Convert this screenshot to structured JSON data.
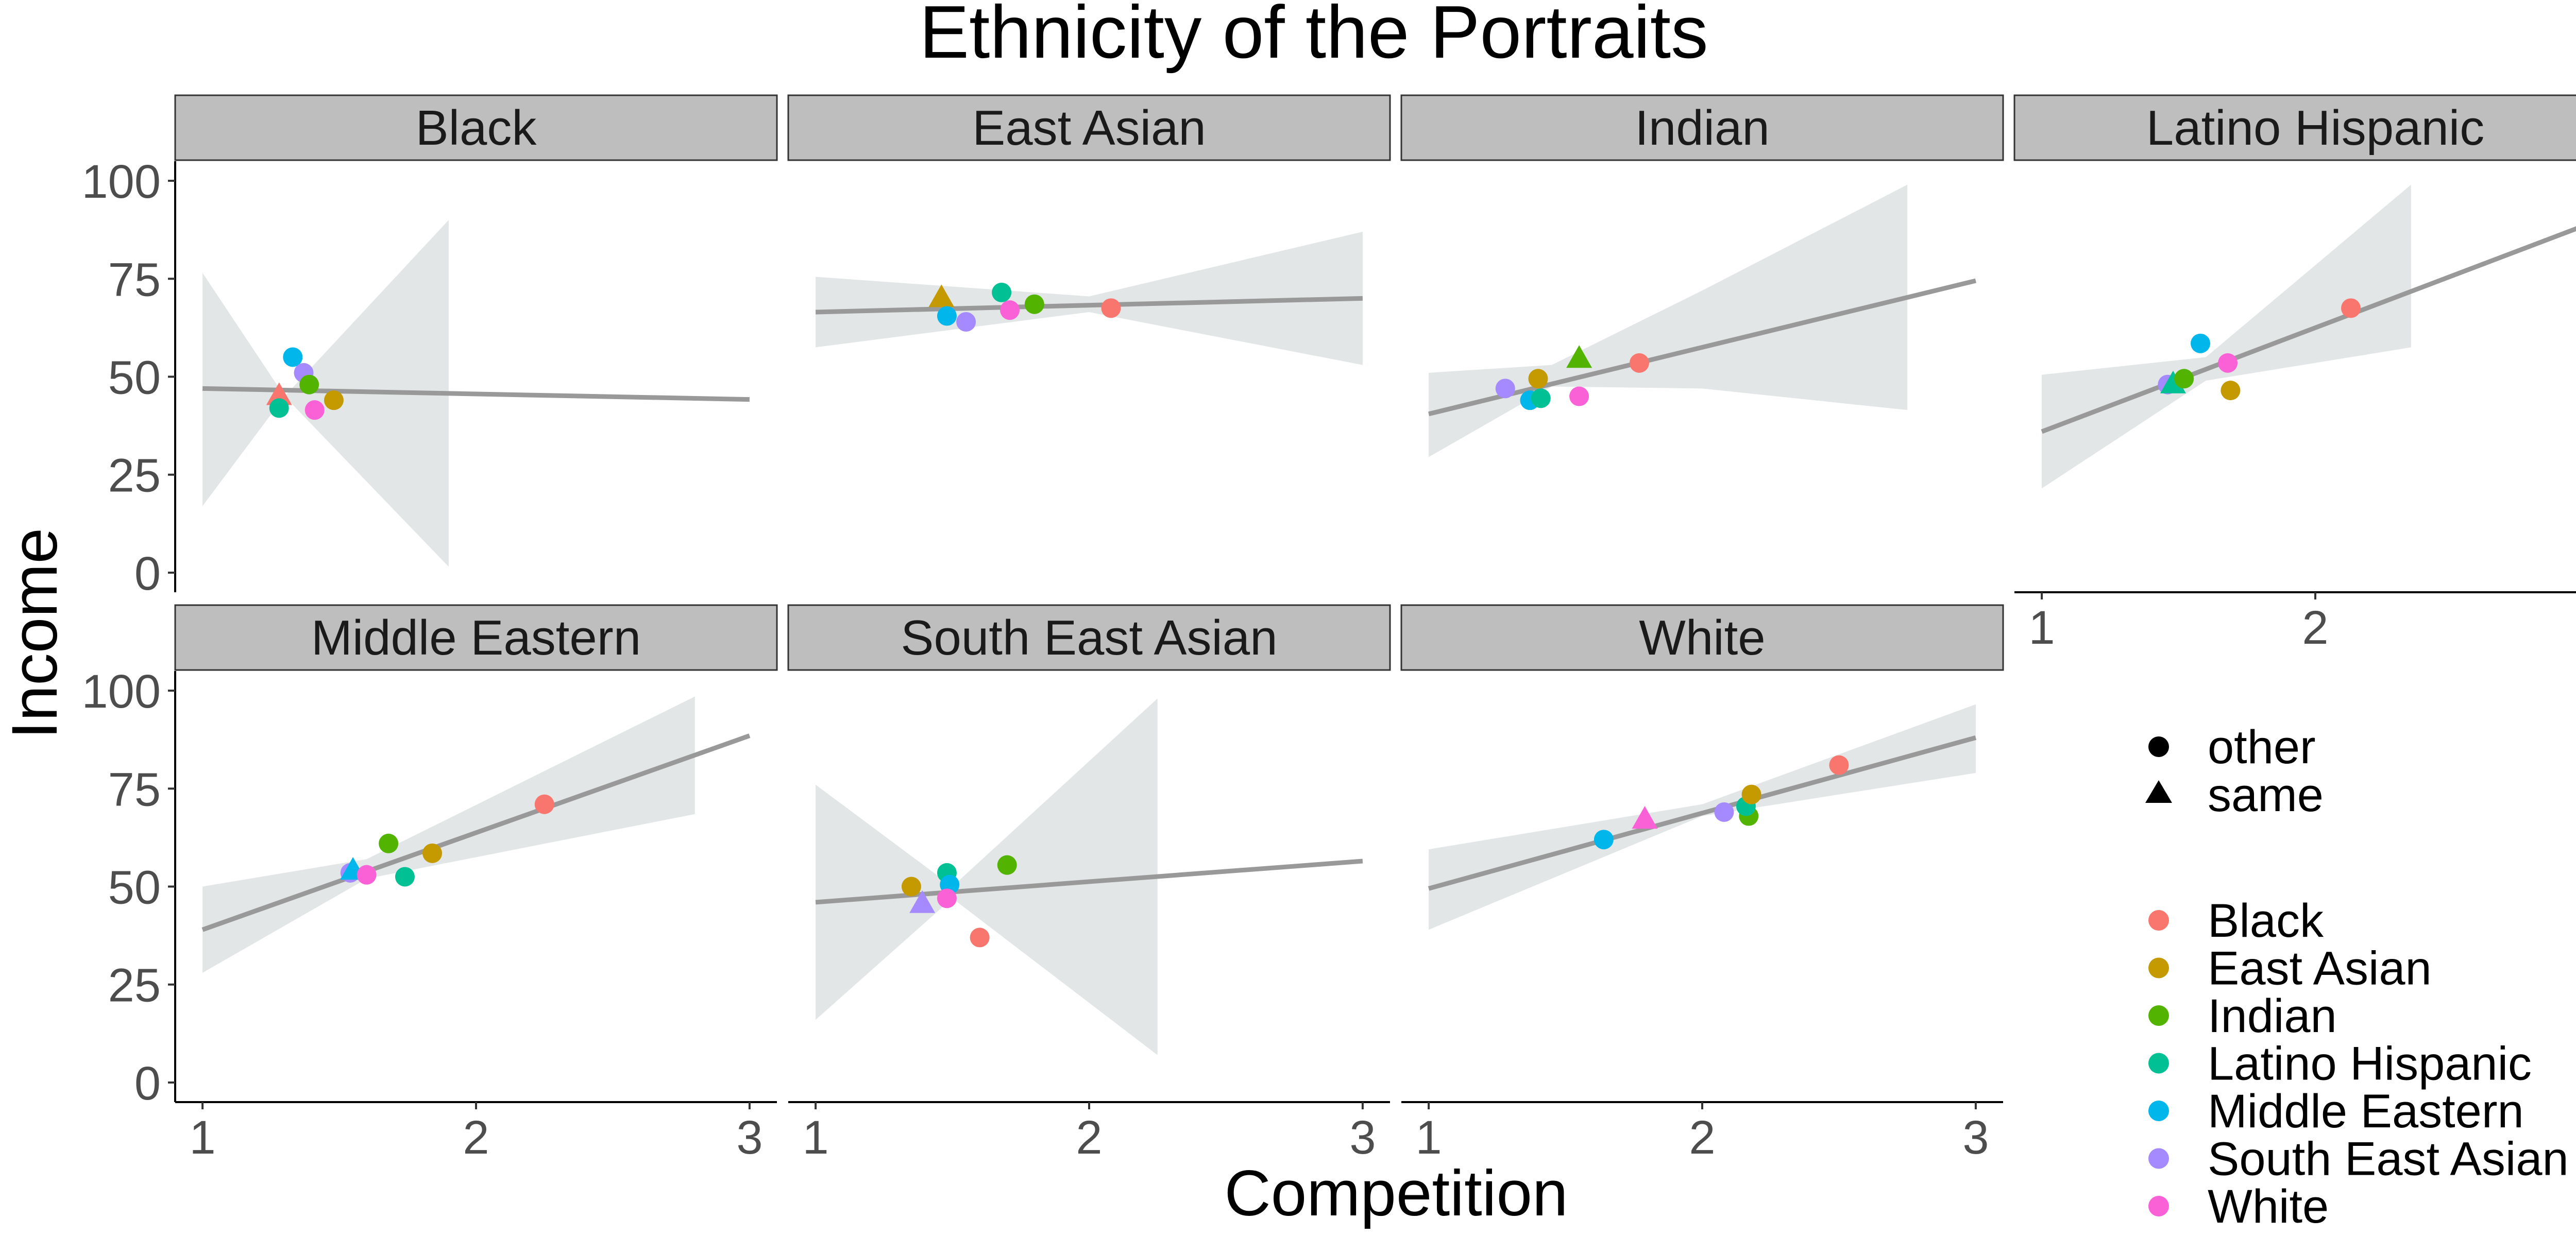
{
  "chart_data": {
    "type": "scatter",
    "title": "Ethnicity of the Portraits",
    "xlabel": "Competition",
    "ylabel": "Income",
    "xlim": [
      0.9,
      3.1
    ],
    "ylim": [
      -5,
      105
    ],
    "x_ticks": [
      "1",
      "2",
      "3"
    ],
    "y_ticks": [
      "0",
      "25",
      "50",
      "75",
      "100"
    ],
    "grid": false,
    "shape_legend": [
      {
        "label": "other",
        "shape": "circle"
      },
      {
        "label": "same",
        "shape": "triangle"
      }
    ],
    "color_legend": [
      {
        "label": "Black",
        "color": "#F8766D"
      },
      {
        "label": "East Asian",
        "color": "#C49A00"
      },
      {
        "label": "Indian",
        "color": "#53B400"
      },
      {
        "label": "Latino Hispanic",
        "color": "#00C094"
      },
      {
        "label": "Middle Eastern",
        "color": "#00B6EB"
      },
      {
        "label": "South East Asian",
        "color": "#A58AFF"
      },
      {
        "label": "White",
        "color": "#FB61D7"
      }
    ],
    "trend_color": "#999999",
    "band_color": "#D5DCDC",
    "facets": [
      {
        "name": "Black",
        "trend": {
          "x": [
            1,
            3
          ],
          "y": [
            47,
            44.2
          ]
        },
        "band": {
          "x": [
            1,
            1.3,
            1.9
          ],
          "upper": [
            76.5,
            45,
            90
          ],
          "lower": [
            17,
            45,
            1.5
          ]
        },
        "points": [
          {
            "group": "Black",
            "shape": "same",
            "x": 1.28,
            "y": 45
          },
          {
            "group": "Latino Hispanic",
            "shape": "other",
            "x": 1.28,
            "y": 42
          },
          {
            "group": "Middle Eastern",
            "shape": "other",
            "x": 1.33,
            "y": 55
          },
          {
            "group": "South East Asian",
            "shape": "other",
            "x": 1.37,
            "y": 51
          },
          {
            "group": "Indian",
            "shape": "other",
            "x": 1.39,
            "y": 48
          },
          {
            "group": "White",
            "shape": "other",
            "x": 1.41,
            "y": 41.5
          },
          {
            "group": "East Asian",
            "shape": "other",
            "x": 1.48,
            "y": 44
          }
        ]
      },
      {
        "name": "East Asian",
        "trend": {
          "x": [
            1,
            3
          ],
          "y": [
            66.5,
            70
          ]
        },
        "band": {
          "x": [
            1,
            2,
            3
          ],
          "upper": [
            75.5,
            70.5,
            87
          ],
          "lower": [
            57.5,
            66.5,
            53
          ]
        },
        "points": [
          {
            "group": "East Asian",
            "shape": "same",
            "x": 1.46,
            "y": 70
          },
          {
            "group": "Middle Eastern",
            "shape": "other",
            "x": 1.48,
            "y": 65.5
          },
          {
            "group": "South East Asian",
            "shape": "other",
            "x": 1.55,
            "y": 64
          },
          {
            "group": "Latino Hispanic",
            "shape": "other",
            "x": 1.68,
            "y": 71.5
          },
          {
            "group": "White",
            "shape": "other",
            "x": 1.71,
            "y": 67
          },
          {
            "group": "Indian",
            "shape": "other",
            "x": 1.8,
            "y": 68.5
          },
          {
            "group": "Black",
            "shape": "other",
            "x": 2.08,
            "y": 67.5
          }
        ]
      },
      {
        "name": "Indian",
        "trend": {
          "x": [
            1,
            3
          ],
          "y": [
            40.5,
            74.5
          ]
        },
        "band": {
          "x": [
            1,
            1.45,
            2,
            2.75
          ],
          "upper": [
            51,
            53,
            72,
            99
          ],
          "lower": [
            29.5,
            47.5,
            47,
            41.5
          ]
        },
        "points": [
          {
            "group": "South East Asian",
            "shape": "other",
            "x": 1.28,
            "y": 47
          },
          {
            "group": "Middle Eastern",
            "shape": "other",
            "x": 1.37,
            "y": 44
          },
          {
            "group": "East Asian",
            "shape": "other",
            "x": 1.4,
            "y": 49.5
          },
          {
            "group": "Latino Hispanic",
            "shape": "other",
            "x": 1.41,
            "y": 44.5
          },
          {
            "group": "Indian",
            "shape": "same",
            "x": 1.55,
            "y": 54.5
          },
          {
            "group": "White",
            "shape": "other",
            "x": 1.55,
            "y": 45
          },
          {
            "group": "Black",
            "shape": "other",
            "x": 1.77,
            "y": 53.5
          }
        ]
      },
      {
        "name": "Latino Hispanic",
        "trend": {
          "x": [
            1,
            3
          ],
          "y": [
            36,
            89
          ]
        },
        "band": {
          "x": [
            1,
            1.6,
            2.35
          ],
          "upper": [
            50.5,
            55,
            99
          ],
          "lower": [
            21.5,
            49,
            57.5
          ]
        },
        "points": [
          {
            "group": "South East Asian",
            "shape": "other",
            "x": 1.46,
            "y": 48
          },
          {
            "group": "Latino Hispanic",
            "shape": "same",
            "x": 1.48,
            "y": 48
          },
          {
            "group": "Indian",
            "shape": "other",
            "x": 1.52,
            "y": 49.5
          },
          {
            "group": "Middle Eastern",
            "shape": "other",
            "x": 1.58,
            "y": 58.5
          },
          {
            "group": "White",
            "shape": "other",
            "x": 1.68,
            "y": 53.5
          },
          {
            "group": "East Asian",
            "shape": "other",
            "x": 1.69,
            "y": 46.5
          },
          {
            "group": "Black",
            "shape": "other",
            "x": 2.13,
            "y": 67.5
          }
        ]
      },
      {
        "name": "Middle Eastern",
        "trend": {
          "x": [
            1,
            3
          ],
          "y": [
            39,
            88.5
          ]
        },
        "band": {
          "x": [
            1,
            1.6,
            2.8
          ],
          "upper": [
            50,
            57,
            98.5
          ],
          "lower": [
            28,
            52,
            68.5
          ]
        },
        "points": [
          {
            "group": "South East Asian",
            "shape": "other",
            "x": 1.54,
            "y": 53.5
          },
          {
            "group": "Middle Eastern",
            "shape": "same",
            "x": 1.55,
            "y": 54
          },
          {
            "group": "White",
            "shape": "other",
            "x": 1.6,
            "y": 53
          },
          {
            "group": "Indian",
            "shape": "other",
            "x": 1.68,
            "y": 61
          },
          {
            "group": "Latino Hispanic",
            "shape": "other",
            "x": 1.74,
            "y": 52.5
          },
          {
            "group": "East Asian",
            "shape": "other",
            "x": 1.84,
            "y": 58.5
          },
          {
            "group": "Black",
            "shape": "other",
            "x": 2.25,
            "y": 71
          }
        ]
      },
      {
        "name": "South East Asian",
        "trend": {
          "x": [
            1,
            3
          ],
          "y": [
            46,
            56.5
          ]
        },
        "band": {
          "x": [
            1,
            1.5,
            2.25
          ],
          "upper": [
            76,
            50,
            98
          ],
          "lower": [
            16,
            47,
            7
          ]
        },
        "points": [
          {
            "group": "East Asian",
            "shape": "other",
            "x": 1.35,
            "y": 50
          },
          {
            "group": "South East Asian",
            "shape": "same",
            "x": 1.39,
            "y": 45.5
          },
          {
            "group": "Latino Hispanic",
            "shape": "other",
            "x": 1.48,
            "y": 53.5
          },
          {
            "group": "Middle Eastern",
            "shape": "other",
            "x": 1.49,
            "y": 50.5
          },
          {
            "group": "White",
            "shape": "other",
            "x": 1.48,
            "y": 47
          },
          {
            "group": "Indian",
            "shape": "other",
            "x": 1.7,
            "y": 55.5
          },
          {
            "group": "Black",
            "shape": "other",
            "x": 1.6,
            "y": 37
          }
        ]
      },
      {
        "name": "White",
        "trend": {
          "x": [
            1,
            3
          ],
          "y": [
            49.5,
            88
          ]
        },
        "band": {
          "x": [
            1,
            2,
            3
          ],
          "upper": [
            59.5,
            71,
            96.5
          ],
          "lower": [
            39,
            68,
            79
          ]
        },
        "points": [
          {
            "group": "Middle Eastern",
            "shape": "other",
            "x": 1.64,
            "y": 62
          },
          {
            "group": "White",
            "shape": "same",
            "x": 1.79,
            "y": 67
          },
          {
            "group": "South East Asian",
            "shape": "other",
            "x": 2.08,
            "y": 69
          },
          {
            "group": "Indian",
            "shape": "other",
            "x": 2.17,
            "y": 68
          },
          {
            "group": "Latino Hispanic",
            "shape": "other",
            "x": 2.16,
            "y": 70.5
          },
          {
            "group": "East Asian",
            "shape": "other",
            "x": 2.18,
            "y": 73.5
          },
          {
            "group": "Black",
            "shape": "other",
            "x": 2.5,
            "y": 81
          }
        ]
      }
    ]
  }
}
